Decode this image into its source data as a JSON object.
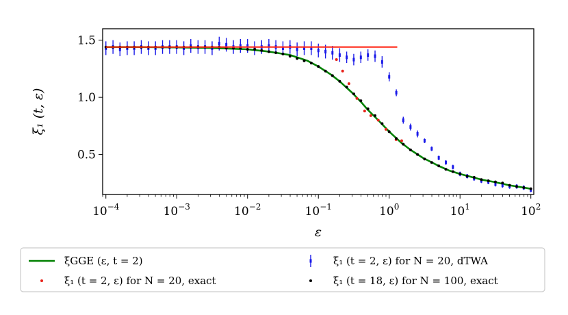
{
  "chart_data": {
    "type": "scatter",
    "xscale": "log",
    "xlim": [
      9e-05,
      110
    ],
    "ylim": [
      0.15,
      1.6
    ],
    "xlabel": "ε",
    "ylabel": "ξ₁ (t, ε)",
    "grid": false,
    "legend_position": "below",
    "x_ticks": [
      {
        "value": 0.0001,
        "base": "10",
        "exp": "−4"
      },
      {
        "value": 0.001,
        "base": "10",
        "exp": "−3"
      },
      {
        "value": 0.01,
        "base": "10",
        "exp": "−2"
      },
      {
        "value": 0.1,
        "base": "10",
        "exp": "−1"
      },
      {
        "value": 1,
        "base": "10",
        "exp": "0"
      },
      {
        "value": 10,
        "base": "10",
        "exp": "1"
      },
      {
        "value": 100,
        "base": "10",
        "exp": "2"
      }
    ],
    "y_ticks": [
      {
        "value": 0.5,
        "label": "0.5"
      },
      {
        "value": 1.0,
        "label": "1.0"
      },
      {
        "value": 1.5,
        "label": "1.5"
      }
    ],
    "series": [
      {
        "name": "ξGGE (ε, t = 2)",
        "kind": "line",
        "color": "#008000",
        "x": [
          0.0001,
          0.0003,
          0.001,
          0.003,
          0.01,
          0.02,
          0.04,
          0.07,
          0.1,
          0.15,
          0.2,
          0.3,
          0.4,
          0.5,
          0.7,
          1,
          1.5,
          2,
          3,
          5,
          7,
          10,
          20,
          30,
          50,
          100
        ],
        "y": [
          1.44,
          1.44,
          1.437,
          1.432,
          1.42,
          1.4,
          1.37,
          1.32,
          1.27,
          1.2,
          1.14,
          1.04,
          0.96,
          0.89,
          0.8,
          0.7,
          0.6,
          0.54,
          0.47,
          0.4,
          0.36,
          0.33,
          0.28,
          0.26,
          0.23,
          0.2
        ]
      },
      {
        "name": "ξ₁ (t = 2, ε) for N = 20, exact",
        "kind": "scatter",
        "color": "#e8221a",
        "x": [
          0.18,
          0.22,
          0.27,
          0.35,
          0.45,
          0.55,
          0.7,
          0.9,
          1.25,
          1.5
        ],
        "y": [
          1.33,
          1.23,
          1.12,
          0.99,
          0.88,
          0.84,
          0.8,
          0.72,
          0.63,
          0.62
        ]
      },
      {
        "name": "ξ₁ (t = 2, ε) for N = 20, dTWA",
        "kind": "errorbar",
        "color": "#1a1ae8",
        "x": [
          0.0001,
          0.000126,
          0.000158,
          0.0002,
          0.000251,
          0.000316,
          0.000398,
          0.000501,
          0.000631,
          0.000794,
          0.001,
          0.00126,
          0.00158,
          0.002,
          0.00251,
          0.00316,
          0.00398,
          0.00501,
          0.00631,
          0.00794,
          0.01,
          0.0126,
          0.0158,
          0.02,
          0.0251,
          0.0316,
          0.0398,
          0.0501,
          0.0631,
          0.0794,
          0.1,
          0.126,
          0.158,
          0.2,
          0.251,
          0.316,
          0.398,
          0.501,
          0.631,
          0.794,
          1.0,
          1.26,
          1.58,
          2.0,
          2.51,
          3.16,
          3.98,
          5.01,
          6.31,
          7.94,
          10.0,
          12.6,
          15.8,
          20.0,
          25.1,
          31.6,
          39.8,
          50.1,
          63.1,
          79.4,
          100.0
        ],
        "y": [
          1.43,
          1.44,
          1.42,
          1.43,
          1.43,
          1.44,
          1.43,
          1.43,
          1.44,
          1.44,
          1.44,
          1.43,
          1.45,
          1.44,
          1.44,
          1.43,
          1.47,
          1.46,
          1.44,
          1.45,
          1.45,
          1.43,
          1.44,
          1.45,
          1.44,
          1.43,
          1.44,
          1.42,
          1.43,
          1.43,
          1.41,
          1.4,
          1.39,
          1.37,
          1.35,
          1.33,
          1.35,
          1.37,
          1.36,
          1.31,
          1.18,
          1.04,
          0.8,
          0.74,
          0.68,
          0.62,
          0.55,
          0.47,
          0.43,
          0.39,
          0.33,
          0.31,
          0.29,
          0.27,
          0.26,
          0.24,
          0.23,
          0.22,
          0.22,
          0.21,
          0.19
        ],
        "yerr": [
          0.06,
          0.06,
          0.06,
          0.06,
          0.06,
          0.06,
          0.06,
          0.06,
          0.06,
          0.06,
          0.06,
          0.06,
          0.06,
          0.06,
          0.06,
          0.06,
          0.06,
          0.06,
          0.06,
          0.06,
          0.06,
          0.06,
          0.06,
          0.06,
          0.06,
          0.06,
          0.06,
          0.06,
          0.06,
          0.06,
          0.06,
          0.06,
          0.06,
          0.06,
          0.05,
          0.05,
          0.05,
          0.05,
          0.05,
          0.05,
          0.04,
          0.03,
          0.03,
          0.03,
          0.03,
          0.02,
          0.02,
          0.02,
          0.02,
          0.02,
          0.02,
          0.02,
          0.02,
          0.02,
          0.02,
          0.02,
          0.02,
          0.02,
          0.02,
          0.02,
          0.02
        ]
      },
      {
        "name": "ξ₁ (t = 18, ε) for N = 100, exact",
        "kind": "scatter",
        "color": "#000000",
        "x": [
          0.0001,
          0.000126,
          0.000158,
          0.0002,
          0.000251,
          0.000316,
          0.000398,
          0.000501,
          0.000631,
          0.000794,
          0.001,
          0.00126,
          0.00158,
          0.002,
          0.00251,
          0.00316,
          0.00398,
          0.00501,
          0.00631,
          0.00794,
          0.01,
          0.0126,
          0.0158,
          0.02,
          0.0251,
          0.0316,
          0.0398,
          0.0501,
          0.0631,
          0.0794,
          0.1,
          0.126,
          0.158,
          0.2,
          0.251,
          0.316,
          0.398,
          0.501,
          0.631,
          0.794,
          1.0,
          1.26,
          1.58,
          2.0,
          2.51,
          3.16,
          3.98,
          5.01,
          6.31,
          7.94,
          10.0,
          12.6,
          15.8,
          20.0,
          25.1,
          31.6,
          39.8,
          50.1,
          63.1,
          79.4,
          100.0
        ],
        "y": [
          1.44,
          1.44,
          1.44,
          1.44,
          1.44,
          1.44,
          1.44,
          1.44,
          1.44,
          1.44,
          1.44,
          1.44,
          1.44,
          1.44,
          1.44,
          1.44,
          1.44,
          1.43,
          1.43,
          1.43,
          1.42,
          1.42,
          1.41,
          1.4,
          1.39,
          1.38,
          1.36,
          1.34,
          1.32,
          1.3,
          1.27,
          1.23,
          1.19,
          1.14,
          1.09,
          1.03,
          0.97,
          0.9,
          0.84,
          0.77,
          0.7,
          0.64,
          0.59,
          0.54,
          0.5,
          0.46,
          0.43,
          0.4,
          0.37,
          0.35,
          0.33,
          0.31,
          0.3,
          0.28,
          0.27,
          0.26,
          0.25,
          0.23,
          0.22,
          0.21,
          0.2
        ]
      },
      {
        "name": "",
        "kind": "hline",
        "color": "#ff2a1a",
        "x": [
          0.0001,
          1.3
        ],
        "y": [
          1.44,
          1.44
        ]
      }
    ],
    "legend": [
      {
        "series": 0,
        "marker": "line",
        "text": "ξGGE (ε, t = 2)"
      },
      {
        "series": 2,
        "marker": "errorbar",
        "text": "ξ₁ (t = 2, ε) for N = 20, dTWA"
      },
      {
        "series": 1,
        "marker": "dot",
        "text": "ξ₁ (t = 2, ε) for N = 20, exact"
      },
      {
        "series": 3,
        "marker": "dot",
        "text": "ξ₁ (t = 18, ε) for N = 100, exact"
      }
    ]
  }
}
